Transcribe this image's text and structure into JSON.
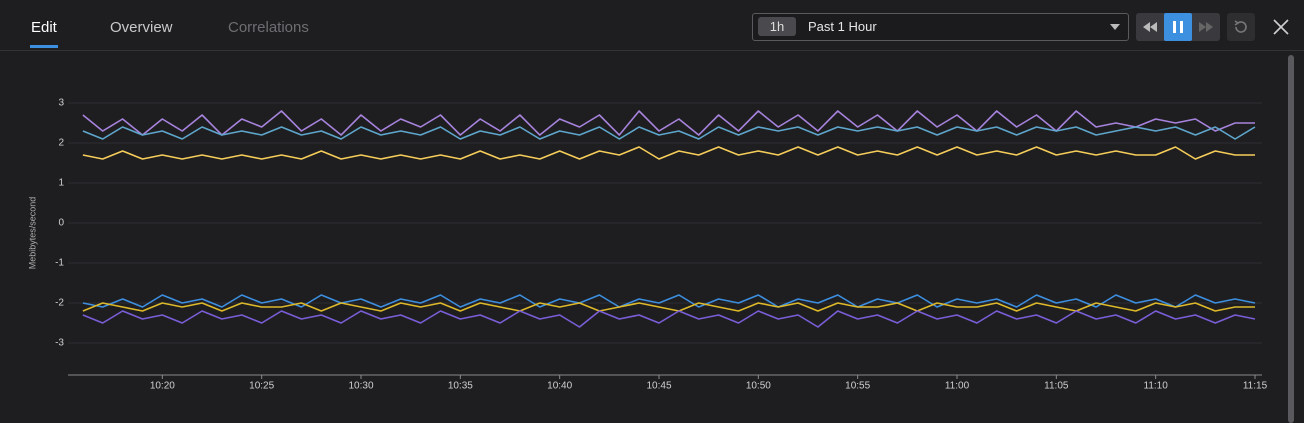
{
  "tabs": [
    "Edit",
    "Overview",
    "Correlations"
  ],
  "time_picker": {
    "short": "1h",
    "label": "Past 1 Hour"
  },
  "chart_data": {
    "type": "line",
    "y_label": "Mebibytes/second",
    "x": [
      "10:16",
      "10:17",
      "10:18",
      "10:19",
      "10:20",
      "10:21",
      "10:22",
      "10:23",
      "10:24",
      "10:25",
      "10:26",
      "10:27",
      "10:28",
      "10:29",
      "10:30",
      "10:31",
      "10:32",
      "10:33",
      "10:34",
      "10:35",
      "10:36",
      "10:37",
      "10:38",
      "10:39",
      "10:40",
      "10:41",
      "10:42",
      "10:43",
      "10:44",
      "10:45",
      "10:46",
      "10:47",
      "10:48",
      "10:49",
      "10:50",
      "10:51",
      "10:52",
      "10:53",
      "10:54",
      "10:55",
      "10:56",
      "10:57",
      "10:58",
      "10:59",
      "11:00",
      "11:01",
      "11:02",
      "11:03",
      "11:04",
      "11:05",
      "11:06",
      "11:07",
      "11:08",
      "11:09",
      "11:10",
      "11:11",
      "11:12",
      "11:13",
      "11:14",
      "11:15"
    ],
    "xlim": [
      "10:15",
      "11:15"
    ],
    "xticks": [
      "10:20",
      "10:25",
      "10:30",
      "10:35",
      "10:40",
      "10:45",
      "10:50",
      "10:55",
      "11:00",
      "11:05",
      "11:10",
      "11:15"
    ],
    "ylim": [
      -3.8,
      3.3
    ],
    "yticks": [
      3,
      2,
      1,
      0,
      -1,
      -2,
      -3
    ],
    "grid": true,
    "series": [
      {
        "color": "#a783dd",
        "values": [
          2.7,
          2.3,
          2.6,
          2.2,
          2.6,
          2.3,
          2.7,
          2.2,
          2.6,
          2.4,
          2.8,
          2.3,
          2.6,
          2.2,
          2.7,
          2.3,
          2.6,
          2.4,
          2.7,
          2.2,
          2.6,
          2.3,
          2.7,
          2.2,
          2.6,
          2.4,
          2.7,
          2.2,
          2.8,
          2.3,
          2.6,
          2.2,
          2.7,
          2.3,
          2.8,
          2.4,
          2.7,
          2.3,
          2.8,
          2.4,
          2.7,
          2.3,
          2.8,
          2.4,
          2.7,
          2.3,
          2.8,
          2.4,
          2.7,
          2.3,
          2.8,
          2.4,
          2.5,
          2.4,
          2.6,
          2.5,
          2.6,
          2.3,
          2.5,
          2.5
        ]
      },
      {
        "color": "#5ea6cc",
        "values": [
          2.3,
          2.1,
          2.4,
          2.2,
          2.3,
          2.1,
          2.4,
          2.2,
          2.3,
          2.2,
          2.4,
          2.2,
          2.3,
          2.1,
          2.4,
          2.2,
          2.3,
          2.2,
          2.4,
          2.1,
          2.3,
          2.2,
          2.4,
          2.1,
          2.3,
          2.2,
          2.4,
          2.1,
          2.4,
          2.2,
          2.3,
          2.1,
          2.4,
          2.2,
          2.4,
          2.3,
          2.4,
          2.2,
          2.4,
          2.3,
          2.4,
          2.3,
          2.4,
          2.2,
          2.4,
          2.3,
          2.4,
          2.2,
          2.4,
          2.3,
          2.4,
          2.2,
          2.3,
          2.4,
          2.3,
          2.4,
          2.2,
          2.4,
          2.1,
          2.4
        ]
      },
      {
        "color": "#f6cd5a",
        "values": [
          1.7,
          1.6,
          1.8,
          1.6,
          1.7,
          1.6,
          1.7,
          1.6,
          1.7,
          1.6,
          1.7,
          1.6,
          1.8,
          1.6,
          1.7,
          1.6,
          1.7,
          1.6,
          1.7,
          1.6,
          1.8,
          1.6,
          1.7,
          1.6,
          1.8,
          1.6,
          1.8,
          1.7,
          1.9,
          1.6,
          1.8,
          1.7,
          1.9,
          1.7,
          1.8,
          1.7,
          1.9,
          1.7,
          1.9,
          1.7,
          1.8,
          1.7,
          1.9,
          1.7,
          1.9,
          1.7,
          1.8,
          1.7,
          1.9,
          1.7,
          1.8,
          1.7,
          1.8,
          1.7,
          1.7,
          1.9,
          1.6,
          1.8,
          1.7,
          1.7
        ]
      },
      {
        "color": "#3d8fe0",
        "values": [
          -2.0,
          -2.1,
          -1.9,
          -2.1,
          -1.8,
          -2.0,
          -1.9,
          -2.1,
          -1.8,
          -2.0,
          -1.9,
          -2.1,
          -1.8,
          -2.0,
          -1.9,
          -2.1,
          -1.9,
          -2.0,
          -1.8,
          -2.1,
          -1.9,
          -2.0,
          -1.8,
          -2.1,
          -1.9,
          -2.0,
          -1.8,
          -2.1,
          -1.9,
          -2.0,
          -1.8,
          -2.1,
          -1.9,
          -2.0,
          -1.8,
          -2.1,
          -1.9,
          -2.0,
          -1.8,
          -2.1,
          -1.9,
          -2.0,
          -1.8,
          -2.1,
          -1.9,
          -2.0,
          -1.9,
          -2.1,
          -1.8,
          -2.0,
          -1.9,
          -2.1,
          -1.8,
          -2.0,
          -1.9,
          -2.1,
          -1.8,
          -2.0,
          -1.9,
          -2.0
        ]
      },
      {
        "color": "#dcb82a",
        "values": [
          -2.2,
          -2.0,
          -2.1,
          -2.2,
          -2.0,
          -2.1,
          -2.0,
          -2.2,
          -2.0,
          -2.1,
          -2.1,
          -2.0,
          -2.2,
          -2.0,
          -2.1,
          -2.2,
          -2.0,
          -2.1,
          -2.0,
          -2.2,
          -2.0,
          -2.1,
          -2.2,
          -2.0,
          -2.1,
          -2.0,
          -2.2,
          -2.1,
          -2.0,
          -2.1,
          -2.2,
          -2.0,
          -2.1,
          -2.2,
          -2.0,
          -2.1,
          -2.0,
          -2.2,
          -2.0,
          -2.1,
          -2.1,
          -2.0,
          -2.2,
          -2.0,
          -2.1,
          -2.1,
          -2.0,
          -2.2,
          -2.0,
          -2.1,
          -2.2,
          -2.0,
          -2.1,
          -2.2,
          -2.0,
          -2.1,
          -2.0,
          -2.2,
          -2.1,
          -2.1
        ]
      },
      {
        "color": "#7a5ed8",
        "values": [
          -2.3,
          -2.5,
          -2.2,
          -2.4,
          -2.3,
          -2.5,
          -2.2,
          -2.4,
          -2.3,
          -2.5,
          -2.2,
          -2.4,
          -2.3,
          -2.5,
          -2.2,
          -2.4,
          -2.3,
          -2.5,
          -2.2,
          -2.4,
          -2.3,
          -2.5,
          -2.2,
          -2.4,
          -2.3,
          -2.6,
          -2.2,
          -2.4,
          -2.3,
          -2.5,
          -2.2,
          -2.4,
          -2.3,
          -2.5,
          -2.2,
          -2.4,
          -2.3,
          -2.6,
          -2.2,
          -2.4,
          -2.3,
          -2.5,
          -2.2,
          -2.4,
          -2.3,
          -2.5,
          -2.2,
          -2.4,
          -2.3,
          -2.5,
          -2.2,
          -2.4,
          -2.3,
          -2.5,
          -2.2,
          -2.4,
          -2.3,
          -2.5,
          -2.3,
          -2.4
        ]
      }
    ]
  }
}
